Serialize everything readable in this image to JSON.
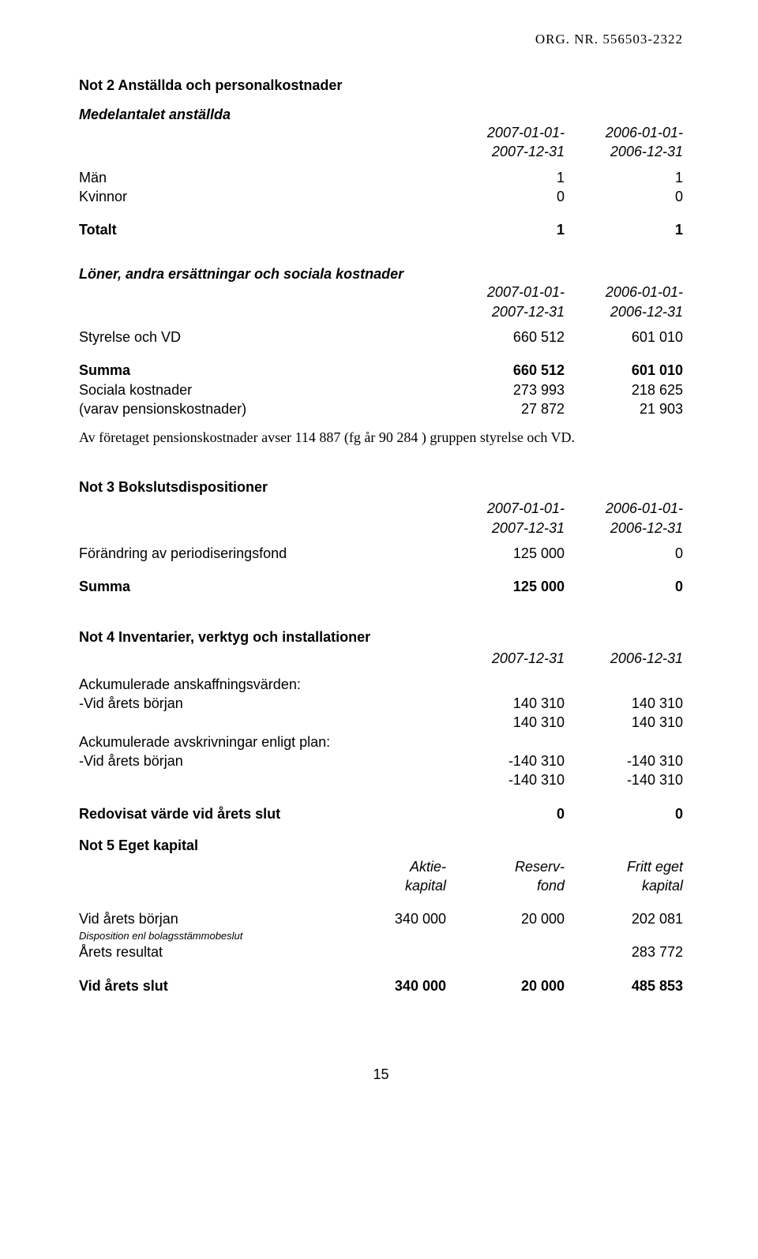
{
  "header": "ORG. NR. 556503-2322",
  "not2": {
    "title": "Not 2  Anställda och personalkostnader",
    "sub1_title": "Medelantalet anställda",
    "period_col1_a": "2007-01-01-",
    "period_col1_b": "2007-12-31",
    "period_col2_a": "2006-01-01-",
    "period_col2_b": "2006-12-31",
    "man_label": "Män",
    "man_v1": "1",
    "man_v2": "1",
    "kvinnor_label": "Kvinnor",
    "kvinnor_v1": "0",
    "kvinnor_v2": "0",
    "totalt_label": "Totalt",
    "totalt_v1": "1",
    "totalt_v2": "1",
    "sub2_title": "Löner, andra ersättningar och sociala kostnader",
    "styrelse_label": "Styrelse och VD",
    "styrelse_v1": "660 512",
    "styrelse_v2": "601 010",
    "summa_label": "Summa",
    "summa_v1": "660 512",
    "summa_v2": "601 010",
    "sociala_label": "Sociala kostnader",
    "sociala_v1": "273 993",
    "sociala_v2": "218 625",
    "varav_label": "(varav pensionskostnader)",
    "varav_v1": "27 872",
    "varav_v2": "21 903",
    "note_text": "Av företaget pensionskostnader avser 114 887 (fg år 90 284 ) gruppen styrelse och VD."
  },
  "not3": {
    "title": "Not 3  Bokslutsdispositioner",
    "period_col1_a": "2007-01-01-",
    "period_col1_b": "2007-12-31",
    "period_col2_a": "2006-01-01-",
    "period_col2_b": "2006-12-31",
    "forandring_label": "Förändring av periodiseringsfond",
    "forandring_v1": "125 000",
    "forandring_v2": "0",
    "summa_label": "Summa",
    "summa_v1": "125 000",
    "summa_v2": "0"
  },
  "not4": {
    "title": "Not 4  Inventarier, verktyg och installationer",
    "period_col1": "2007-12-31",
    "period_col2": "2006-12-31",
    "ack_ansk_label": "Ackumulerade anskaffningsvärden:",
    "vid_borjan_label": "-Vid årets början",
    "ansk_r1_v1": "140 310",
    "ansk_r1_v2": "140 310",
    "ansk_r2_v1": "140 310",
    "ansk_r2_v2": "140 310",
    "ack_avskr_label": "Ackumulerade avskrivningar enligt plan:",
    "avskr_r1_v1": "-140 310",
    "avskr_r1_v2": "-140 310",
    "avskr_r2_v1": "-140 310",
    "avskr_r2_v2": "-140 310",
    "redov_label": "Redovisat värde vid årets slut",
    "redov_v1": "0",
    "redov_v2": "0"
  },
  "not5": {
    "title": "Not 5  Eget kapital",
    "h1a": "Aktie-",
    "h1b": "kapital",
    "h2a": "Reserv-",
    "h2b": "fond",
    "h3a": "Fritt eget",
    "h3b": "kapital",
    "vid_borjan_label": "Vid årets början",
    "vid_borjan_v1": "340 000",
    "vid_borjan_v2": "20 000",
    "vid_borjan_v3": "202 081",
    "dispo_label": "Disposition enl bolagsstämmobeslut",
    "resultat_label": "Årets resultat",
    "resultat_v3": "283 772",
    "slut_label": "Vid årets slut",
    "slut_v1": "340 000",
    "slut_v2": "20 000",
    "slut_v3": "485 853"
  },
  "footer": "15"
}
